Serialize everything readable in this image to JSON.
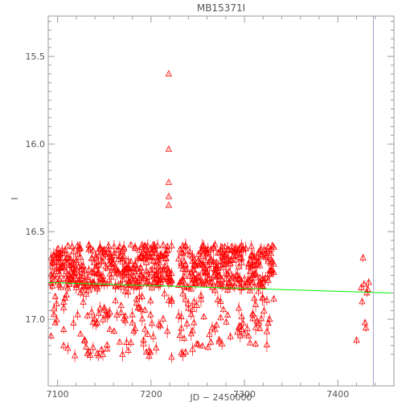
{
  "chart_data": {
    "type": "scatter",
    "title": "MB15371I",
    "xlabel": "JD − 2450000",
    "ylabel": "I",
    "xlim": [
      7090,
      7460
    ],
    "ylim": [
      17.38,
      15.27
    ],
    "y_inverted": true,
    "xticks": [
      7100,
      7200,
      7300,
      7400
    ],
    "xtick_labels": [
      "7100",
      "7200",
      "7300",
      "7400"
    ],
    "yticks": [
      15.5,
      16.0,
      16.5,
      17.0
    ],
    "ytick_labels": [
      "15.5",
      "16.0",
      "16.5",
      "17.0"
    ],
    "grid": false,
    "marker": "triangle-open",
    "colors": {
      "points": "#ff0000",
      "model": "#00ee00",
      "vline": "#a0a0c8",
      "frame": "#9a9a9a"
    },
    "vertical_line_x": 7438,
    "model_line": {
      "x": [
        7090,
        7460
      ],
      "y": [
        16.79,
        16.85
      ]
    },
    "band": {
      "x_start": 7093,
      "x_end": 7332,
      "step": 1.5,
      "y_top": 16.62,
      "y_bottom": 17.22,
      "gap_start": 7223,
      "gap_end": 7229
    },
    "outliers": [
      {
        "x": 7219,
        "y": 15.6
      },
      {
        "x": 7219,
        "y": 16.03
      },
      {
        "x": 7219,
        "y": 16.22
      },
      {
        "x": 7219,
        "y": 16.3
      },
      {
        "x": 7219,
        "y": 16.35
      }
    ],
    "late_points": [
      {
        "x": 7420,
        "y": 17.12
      },
      {
        "x": 7425,
        "y": 16.82
      },
      {
        "x": 7426,
        "y": 16.9
      },
      {
        "x": 7427,
        "y": 16.65
      },
      {
        "x": 7428,
        "y": 16.8
      },
      {
        "x": 7429,
        "y": 17.02
      },
      {
        "x": 7430,
        "y": 17.05
      },
      {
        "x": 7431,
        "y": 16.85
      },
      {
        "x": 7432,
        "y": 16.83
      },
      {
        "x": 7433,
        "y": 16.79
      }
    ]
  }
}
